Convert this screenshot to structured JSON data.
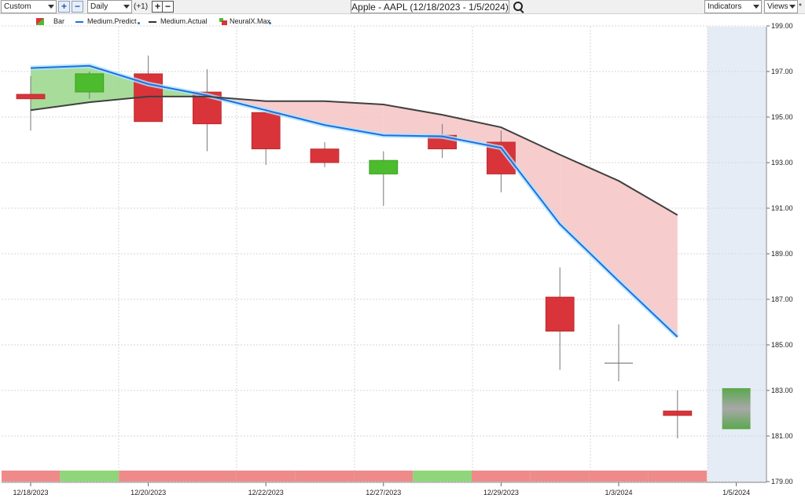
{
  "toolbar": {
    "layout_select": "Custom",
    "add_label": "+",
    "remove_label": "−",
    "interval_select": "Daily",
    "offset_label": "(+1)",
    "offset_add": "+",
    "offset_remove": "−",
    "title": "Apple - AAPL (12/18/2023 - 1/5/2024)",
    "indicators_label": "Indicators",
    "views_label": "Views",
    "asterisk": "*"
  },
  "legend": [
    {
      "label": "Bar",
      "kind": "bar-swatch"
    },
    {
      "label": "Medium.Predict",
      "kind": "line",
      "color": "#1f6fe0",
      "dot": true
    },
    {
      "label": "Medium.Actual",
      "kind": "line",
      "color": "#333333",
      "dot": false
    },
    {
      "label": "NeuralX.Max",
      "kind": "nx-swatch",
      "dot": true
    }
  ],
  "colors": {
    "up": "#4cbb2e",
    "down": "#d9343a",
    "predict": "#1f6fe0",
    "actual": "#404040",
    "fill_above": "#9fd88f",
    "fill_below": "#f6c7c7",
    "strip_green": "#8fd67a",
    "strip_red": "#ef8a8a",
    "future_band": "#e6ecf5",
    "forecast_box": "#5aa84c"
  },
  "chart_data": {
    "type": "candlestick",
    "x_ticks": [
      {
        "label": "12/18/2023",
        "index": 0
      },
      {
        "label": "12/20/2023",
        "index": 2
      },
      {
        "label": "12/22/2023",
        "index": 4
      },
      {
        "label": "12/27/2023",
        "index": 6
      },
      {
        "label": "12/29/2023",
        "index": 8
      },
      {
        "label": "1/3/2024",
        "index": 10
      },
      {
        "label": "1/5/2024",
        "index": 12
      }
    ],
    "ylim": [
      179.0,
      199.0
    ],
    "y_ticks": [
      "199.00",
      "197.00",
      "195.00",
      "193.00",
      "191.00",
      "189.00",
      "187.00",
      "185.00",
      "183.00",
      "181.00",
      "179.00"
    ],
    "candles": [
      {
        "open": 196.0,
        "high": 196.8,
        "low": 194.4,
        "close": 195.8
      },
      {
        "open": 196.1,
        "high": 197.0,
        "low": 195.8,
        "close": 196.9
      },
      {
        "open": 196.9,
        "high": 197.7,
        "low": 194.8,
        "close": 194.8
      },
      {
        "open": 196.1,
        "high": 197.1,
        "low": 193.5,
        "close": 194.7
      },
      {
        "open": 195.2,
        "high": 195.4,
        "low": 192.9,
        "close": 193.6
      },
      {
        "open": 193.6,
        "high": 193.9,
        "low": 192.8,
        "close": 193.0
      },
      {
        "open": 192.5,
        "high": 193.5,
        "low": 191.1,
        "close": 193.1
      },
      {
        "open": 194.2,
        "high": 194.7,
        "low": 193.2,
        "close": 193.6
      },
      {
        "open": 193.9,
        "high": 194.4,
        "low": 191.7,
        "close": 192.5
      },
      {
        "open": 187.1,
        "high": 188.4,
        "low": 183.9,
        "close": 185.6
      },
      {
        "open": 184.2,
        "high": 185.9,
        "low": 183.4,
        "close": 184.2
      },
      {
        "open": 182.1,
        "high": 183.0,
        "low": 180.9,
        "close": 181.9
      }
    ],
    "series": [
      {
        "key": "predict",
        "name": "Medium.Predict",
        "values": [
          197.15,
          197.25,
          196.45,
          195.95,
          195.3,
          194.65,
          194.2,
          194.15,
          193.65,
          190.3,
          187.8,
          185.35
        ]
      },
      {
        "key": "actual",
        "name": "Medium.Actual",
        "values": [
          195.3,
          195.65,
          195.9,
          195.9,
          195.7,
          195.7,
          195.55,
          195.1,
          194.55,
          193.35,
          192.2,
          190.7
        ]
      }
    ],
    "forecast": {
      "index": 12,
      "high": 183.1,
      "low": 181.3
    },
    "strip": [
      "red",
      "green",
      "red",
      "red",
      "red",
      "red",
      "red",
      "green",
      "red",
      "red",
      "red",
      "red"
    ]
  }
}
